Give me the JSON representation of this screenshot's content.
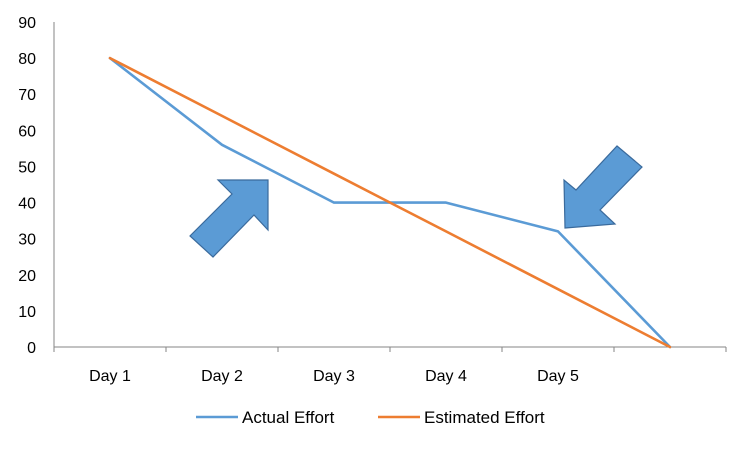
{
  "chart_data": {
    "type": "line",
    "categories": [
      "Day 1",
      "Day 2",
      "Day 3",
      "Day 4",
      "Day 5",
      ""
    ],
    "series": [
      {
        "name": "Actual Effort",
        "color": "#5b9bd5",
        "values": [
          80,
          56,
          40,
          40,
          32,
          0
        ]
      },
      {
        "name": "Estimated Effort",
        "color": "#ed7d31",
        "values": [
          80,
          64,
          48,
          32,
          16,
          0
        ]
      }
    ],
    "y_ticks": [
      "0",
      "10",
      "20",
      "30",
      "40",
      "50",
      "60",
      "70",
      "80",
      "90"
    ],
    "ylim": [
      0,
      90
    ],
    "grid": false,
    "legend": "bottom",
    "title": "",
    "xlabel": "",
    "ylabel": "",
    "annotations": [
      {
        "type": "arrow",
        "icon": "arrow-up-right-icon",
        "color": "#5b9bd5",
        "points_toward": "Day 2–Day 3 segment"
      },
      {
        "type": "arrow",
        "icon": "arrow-down-left-icon",
        "color": "#5b9bd5",
        "points_toward": "Day 5 point"
      }
    ]
  }
}
